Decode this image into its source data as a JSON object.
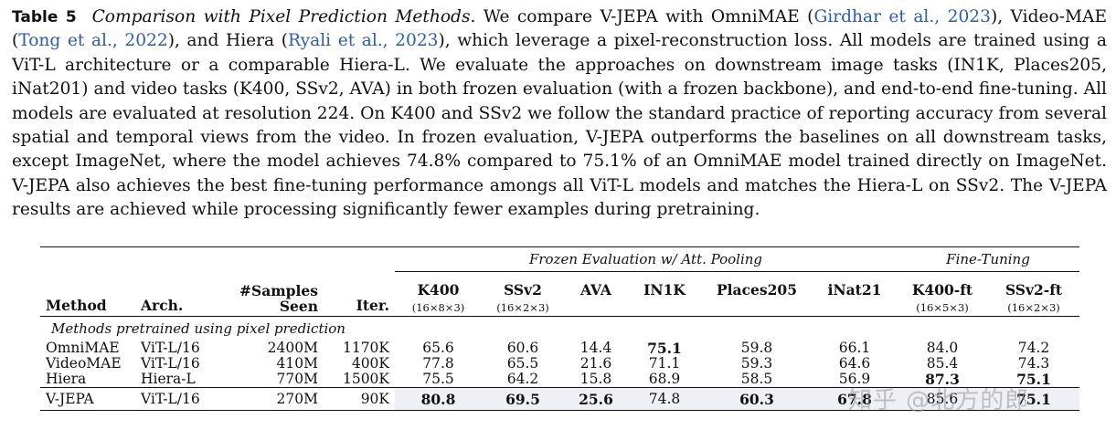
{
  "caption": {
    "label": "Table 5",
    "title": "Comparison with Pixel Prediction Methods.",
    "seg1": " We compare V-JEPA with OmniMAE (",
    "cite1": "Girdhar et al., 2023",
    "seg2": "), Video-MAE (",
    "cite2": "Tong et al., 2022",
    "seg3": "), and Hiera (",
    "cite3": "Ryali et al., 2023",
    "seg4": "), which leverage a pixel-reconstruction loss. All models are trained using a ViT-L architecture or a comparable Hiera-L. We evaluate the approaches on downstream image tasks (IN1K, Places205, iNat201) and video tasks (K400, SSv2, AVA) in both frozen evaluation (with a frozen backbone), and end-to-end fine-tuning. All models are evaluated at resolution 224. On K400 and SSv2 we follow the standard practice of reporting accuracy from several spatial and temporal views from the video. In frozen evaluation, V-JEPA outperforms the baselines on all downstream tasks, except ImageNet, where the model achieves 74.8% compared to 75.1% of an OmniMAE model trained directly on ImageNet. V-JEPA also achieves the best fine-tuning performance amongs all ViT-L models and matches the Hiera-L on SSv2. The V-JEPA results are achieved while processing significantly fewer examples during pretraining."
  },
  "table": {
    "group_frozen": "Frozen Evaluation w/ Att. Pooling",
    "group_finetune": "Fine-Tuning",
    "headers": {
      "method": "Method",
      "arch": "Arch.",
      "samples_line1": "#Samples",
      "samples_line2": "Seen",
      "iter": "Iter.",
      "k400": "K400",
      "k400_sub": "(16×8×3)",
      "ssv2": "SSv2",
      "ssv2_sub": "(16×2×3)",
      "ava": "AVA",
      "in1k": "IN1K",
      "places": "Places205",
      "inat": "iNat21",
      "k400ft": "K400-ft",
      "k400ft_sub": "(16×5×3)",
      "ssv2ft": "SSv2-ft",
      "ssv2ft_sub": "(16×2×3)"
    },
    "section_label": "Methods pretrained using pixel prediction",
    "rows": [
      {
        "method": "OmniMAE",
        "arch": "ViT-L/16",
        "samples": "2400M",
        "iter": "1170K",
        "k400": "65.6",
        "ssv2": "60.6",
        "ava": "14.4",
        "in1k": "75.1",
        "places": "59.8",
        "inat": "66.1",
        "k400ft": "84.0",
        "ssv2ft": "74.2"
      },
      {
        "method": "VideoMAE",
        "arch": "ViT-L/16",
        "samples": "410M",
        "iter": "400K",
        "k400": "77.8",
        "ssv2": "65.5",
        "ava": "21.6",
        "in1k": "71.1",
        "places": "59.3",
        "inat": "64.6",
        "k400ft": "85.4",
        "ssv2ft": "74.3"
      },
      {
        "method": "Hiera",
        "arch": "Hiera-L",
        "samples": "770M",
        "iter": "1500K",
        "k400": "75.5",
        "ssv2": "64.2",
        "ava": "15.8",
        "in1k": "68.9",
        "places": "58.5",
        "inat": "56.9",
        "k400ft": "87.3",
        "ssv2ft": "75.1"
      }
    ],
    "vjepa": {
      "method": "V-JEPA",
      "arch": "ViT-L/16",
      "samples": "270M",
      "iter": "90K",
      "k400": "80.8",
      "ssv2": "69.5",
      "ava": "25.6",
      "in1k": "74.8",
      "places": "60.3",
      "inat": "67.8",
      "k400ft": "85.6",
      "ssv2ft": "75.1"
    }
  },
  "watermark": "知乎 @北方的郎"
}
